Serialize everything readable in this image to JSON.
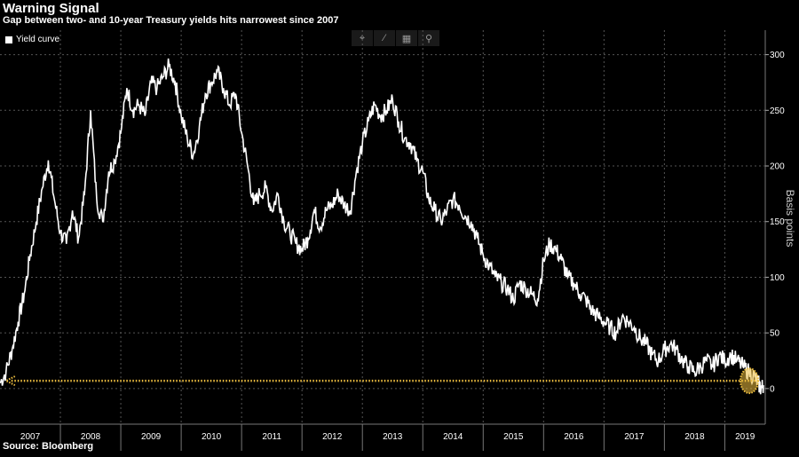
{
  "header": {
    "title": "Warning Signal",
    "subtitle": "Gap between two- and 10-year Treasury yields hits narrowest since 2007"
  },
  "footer": {
    "source": "Source: Bloomberg"
  },
  "toolbar": {
    "icons": [
      "crosshair-icon",
      "draw-line-icon",
      "palette-icon",
      "zoom-icon"
    ]
  },
  "colors": {
    "line": "#ffffff",
    "highlight": "#f0c040",
    "grid": "#555555",
    "background": "#000000"
  },
  "chart_data": {
    "type": "line",
    "title": "Warning Signal",
    "subtitle": "Gap between two- and 10-year Treasury yields hits narrowest since 2007",
    "ylabel": "Basis points",
    "xlabel": "",
    "ylim": [
      -32,
      322
    ],
    "xlim": [
      2007.0,
      2019.67
    ],
    "yticks": [
      0,
      50,
      100,
      150,
      200,
      250,
      300
    ],
    "xticks": [
      "2007",
      "2008",
      "2009",
      "2010",
      "2011",
      "2012",
      "2013",
      "2014",
      "2015",
      "2016",
      "2017",
      "2018",
      "2019"
    ],
    "grid": true,
    "legend_position": "top-left",
    "series": [
      {
        "name": "Yield curve",
        "x": [
          2007.0,
          2007.1,
          2007.2,
          2007.3,
          2007.4,
          2007.5,
          2007.6,
          2007.7,
          2007.8,
          2007.9,
          2008.0,
          2008.1,
          2008.2,
          2008.3,
          2008.4,
          2008.5,
          2008.6,
          2008.7,
          2008.8,
          2008.9,
          2009.0,
          2009.1,
          2009.2,
          2009.3,
          2009.4,
          2009.5,
          2009.6,
          2009.7,
          2009.8,
          2009.9,
          2010.0,
          2010.1,
          2010.2,
          2010.3,
          2010.4,
          2010.5,
          2010.6,
          2010.7,
          2010.8,
          2010.9,
          2011.0,
          2011.1,
          2011.2,
          2011.3,
          2011.4,
          2011.5,
          2011.6,
          2011.7,
          2011.8,
          2011.9,
          2012.0,
          2012.1,
          2012.2,
          2012.3,
          2012.4,
          2012.5,
          2012.6,
          2012.7,
          2012.8,
          2012.9,
          2013.0,
          2013.1,
          2013.2,
          2013.3,
          2013.4,
          2013.5,
          2013.6,
          2013.7,
          2013.8,
          2013.9,
          2014.0,
          2014.1,
          2014.2,
          2014.3,
          2014.4,
          2014.5,
          2014.6,
          2014.7,
          2014.8,
          2014.9,
          2015.0,
          2015.1,
          2015.2,
          2015.3,
          2015.4,
          2015.5,
          2015.6,
          2015.7,
          2015.8,
          2015.9,
          2016.0,
          2016.1,
          2016.2,
          2016.3,
          2016.4,
          2016.5,
          2016.6,
          2016.7,
          2016.8,
          2016.9,
          2017.0,
          2017.1,
          2017.2,
          2017.3,
          2017.4,
          2017.5,
          2017.6,
          2017.7,
          2017.8,
          2017.9,
          2018.0,
          2018.1,
          2018.2,
          2018.3,
          2018.4,
          2018.5,
          2018.6,
          2018.7,
          2018.8,
          2018.9,
          2019.0,
          2019.1,
          2019.2,
          2019.3,
          2019.4,
          2019.5,
          2019.55,
          2019.6,
          2019.64
        ],
        "values": [
          5,
          15,
          35,
          60,
          85,
          120,
          150,
          180,
          205,
          170,
          140,
          130,
          160,
          135,
          175,
          250,
          170,
          150,
          195,
          205,
          230,
          270,
          250,
          255,
          245,
          275,
          270,
          280,
          290,
          275,
          245,
          225,
          210,
          235,
          265,
          275,
          285,
          270,
          255,
          265,
          230,
          200,
          165,
          175,
          180,
          160,
          175,
          150,
          140,
          130,
          125,
          135,
          160,
          145,
          160,
          165,
          175,
          165,
          160,
          195,
          220,
          240,
          255,
          245,
          250,
          260,
          240,
          225,
          220,
          205,
          195,
          170,
          160,
          150,
          160,
          170,
          165,
          155,
          150,
          135,
          120,
          110,
          100,
          95,
          90,
          80,
          95,
          90,
          85,
          80,
          115,
          130,
          125,
          115,
          100,
          95,
          85,
          80,
          70,
          65,
          60,
          55,
          50,
          65,
          60,
          55,
          45,
          40,
          30,
          25,
          35,
          40,
          35,
          25,
          20,
          15,
          20,
          25,
          20,
          30,
          25,
          30,
          25,
          20,
          15,
          10,
          5,
          0,
          3
        ]
      }
    ],
    "annotations": [
      {
        "type": "reference-line",
        "y": 7,
        "x_from": 2007.1,
        "x_to": 2019.58,
        "color": "#f0c040"
      },
      {
        "type": "highlight-ellipse",
        "x": 2019.64,
        "y": 7,
        "color": "#f0c040"
      }
    ]
  }
}
